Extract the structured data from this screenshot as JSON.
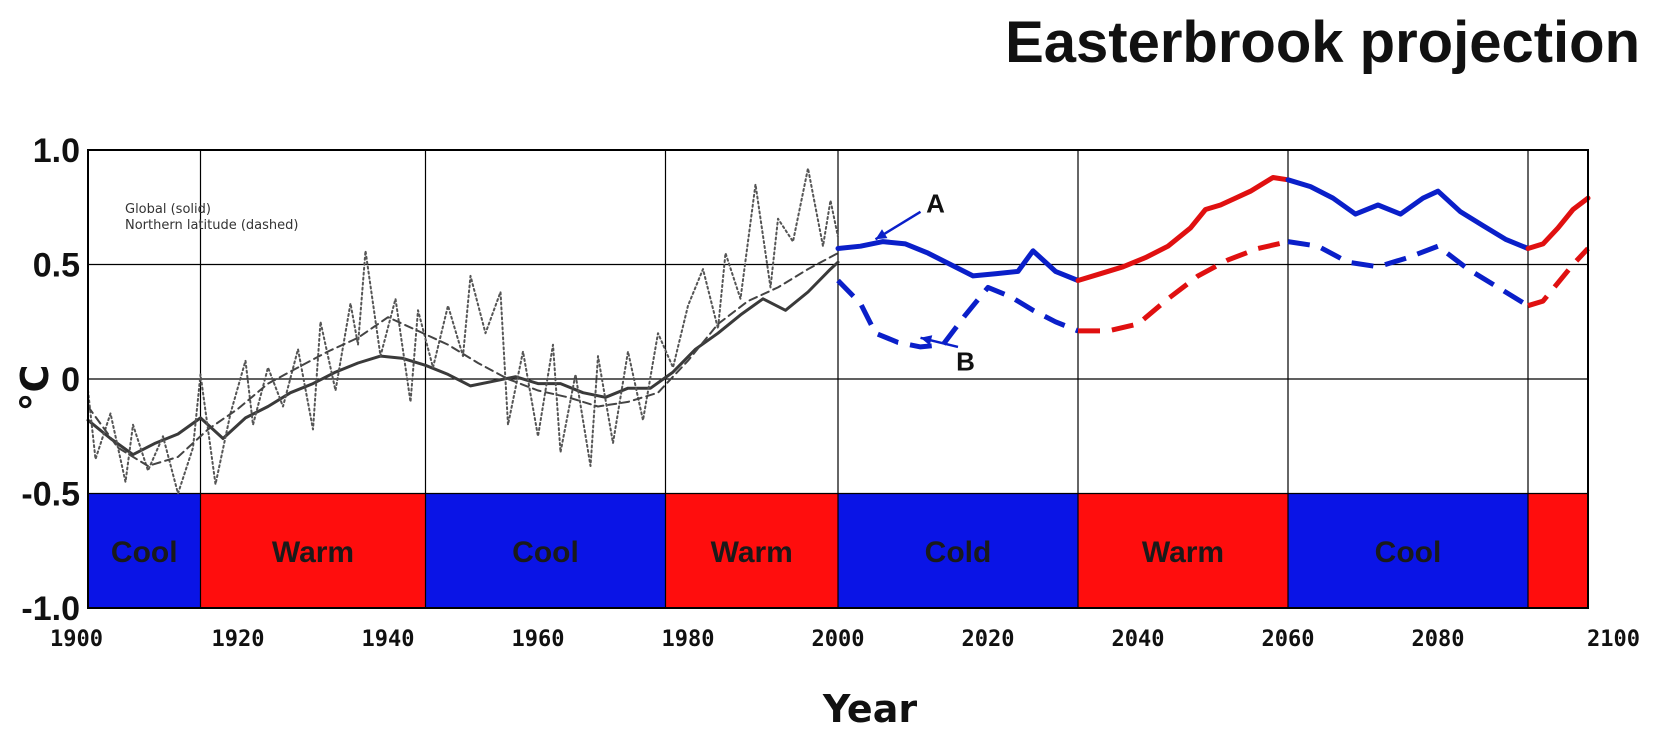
{
  "chart_data": {
    "type": "line",
    "title": "Easterbrook projection",
    "xlabel": "Year",
    "ylabel": "°C",
    "xlim": [
      1900,
      2100
    ],
    "ylim": [
      -1.0,
      1.0
    ],
    "xticks": [
      1900,
      1920,
      1940,
      1960,
      1980,
      2000,
      2020,
      2040,
      2060,
      2080,
      2100
    ],
    "yticks": [
      {
        "value": 1.0,
        "label": "1.0"
      },
      {
        "value": 0.5,
        "label": "0.5"
      },
      {
        "value": 0.0,
        "label": "0"
      },
      {
        "value": -0.5,
        "label": "-0.5"
      },
      {
        "value": -1.0,
        "label": "-1.0"
      }
    ],
    "legend": {
      "placement": "top-left",
      "entries": [
        "Global (solid)",
        "Northern latitude (dashed)"
      ]
    },
    "colors": {
      "blue": "#0a1fc9",
      "red": "#e01010",
      "grid": "#000000",
      "historic": "#333333"
    },
    "bands": [
      {
        "label": "Cool",
        "start": 1900,
        "end": 1915,
        "color": "#0a14e6"
      },
      {
        "label": "Warm",
        "start": 1915,
        "end": 1945,
        "color": "#ff0d0d"
      },
      {
        "label": "Cool",
        "start": 1945,
        "end": 1977,
        "color": "#0a14e6"
      },
      {
        "label": "Warm",
        "start": 1977,
        "end": 2000,
        "color": "#ff0d0d"
      },
      {
        "label": "Cold",
        "start": 2000,
        "end": 2032,
        "color": "#0a14e6"
      },
      {
        "label": "Warm",
        "start": 2032,
        "end": 2060,
        "color": "#ff0d0d"
      },
      {
        "label": "Cool",
        "start": 2060,
        "end": 2092,
        "color": "#0a14e6"
      },
      {
        "label": "",
        "start": 2092,
        "end": 2100,
        "color": "#ff0d0d"
      }
    ],
    "series": [
      {
        "style": "solid",
        "color": "blue",
        "x": [
          2000,
          2003,
          2006,
          2009,
          2012,
          2015,
          2018,
          2021,
          2024,
          2026,
          2029,
          2032
        ],
        "y": [
          0.57,
          0.58,
          0.6,
          0.59,
          0.55,
          0.5,
          0.45,
          0.46,
          0.47,
          0.56,
          0.47,
          0.43
        ]
      },
      {
        "style": "solid",
        "color": "red",
        "x": [
          2032,
          2035,
          2038,
          2041,
          2044,
          2047,
          2049,
          2051,
          2053,
          2055,
          2058,
          2060
        ],
        "y": [
          0.43,
          0.46,
          0.49,
          0.53,
          0.58,
          0.66,
          0.74,
          0.76,
          0.79,
          0.82,
          0.88,
          0.87
        ]
      },
      {
        "style": "solid",
        "color": "blue",
        "x": [
          2060,
          2063,
          2066,
          2069,
          2072,
          2075,
          2078,
          2080,
          2083,
          2086,
          2089,
          2092
        ],
        "y": [
          0.87,
          0.84,
          0.79,
          0.72,
          0.76,
          0.72,
          0.79,
          0.82,
          0.73,
          0.67,
          0.61,
          0.57
        ]
      },
      {
        "style": "solid",
        "color": "red",
        "x": [
          2092,
          2094,
          2096,
          2098,
          2100
        ],
        "y": [
          0.57,
          0.59,
          0.66,
          0.74,
          0.79
        ]
      },
      {
        "style": "dashed",
        "color": "blue",
        "x": [
          2000,
          2003,
          2005,
          2008,
          2011,
          2014,
          2017,
          2020,
          2023,
          2026,
          2029,
          2032
        ],
        "y": [
          0.43,
          0.33,
          0.2,
          0.16,
          0.14,
          0.15,
          0.28,
          0.4,
          0.36,
          0.3,
          0.25,
          0.21
        ]
      },
      {
        "style": "dashed",
        "color": "red",
        "x": [
          2032,
          2036,
          2040,
          2044,
          2048,
          2052,
          2056,
          2060
        ],
        "y": [
          0.21,
          0.21,
          0.24,
          0.35,
          0.45,
          0.52,
          0.57,
          0.6
        ]
      },
      {
        "style": "dashed",
        "color": "blue",
        "x": [
          2060,
          2064,
          2068,
          2072,
          2076,
          2080,
          2084,
          2088,
          2092
        ],
        "y": [
          0.6,
          0.58,
          0.51,
          0.49,
          0.53,
          0.58,
          0.48,
          0.4,
          0.32
        ]
      },
      {
        "style": "dashed",
        "color": "red",
        "x": [
          2092,
          2094,
          2096,
          2098,
          2100
        ],
        "y": [
          0.32,
          0.34,
          0.42,
          0.5,
          0.57
        ]
      },
      {
        "style": "historic-solid",
        "color": "historic",
        "x": [
          1900,
          1903,
          1906,
          1909,
          1912,
          1915,
          1918,
          1921,
          1924,
          1927,
          1930,
          1933,
          1936,
          1939,
          1942,
          1945,
          1948,
          1951,
          1954,
          1957,
          1960,
          1963,
          1966,
          1969,
          1972,
          1975,
          1978,
          1981,
          1984,
          1987,
          1990,
          1993,
          1996,
          1999,
          2000
        ],
        "y": [
          -0.18,
          -0.26,
          -0.33,
          -0.28,
          -0.24,
          -0.17,
          -0.26,
          -0.17,
          -0.12,
          -0.06,
          -0.02,
          0.03,
          0.07,
          0.1,
          0.09,
          0.06,
          0.02,
          -0.03,
          -0.01,
          0.01,
          -0.02,
          -0.02,
          -0.06,
          -0.08,
          -0.04,
          -0.04,
          0.03,
          0.13,
          0.2,
          0.28,
          0.35,
          0.3,
          0.38,
          0.48,
          0.51
        ]
      },
      {
        "style": "historic-dotted",
        "color": "historic",
        "x": [
          1900,
          1901,
          1903,
          1905,
          1906,
          1908,
          1910,
          1912,
          1914,
          1915,
          1917,
          1919,
          1921,
          1922,
          1924,
          1926,
          1928,
          1930,
          1931,
          1933,
          1935,
          1936,
          1937,
          1939,
          1941,
          1943,
          1944,
          1946,
          1948,
          1950,
          1951,
          1953,
          1955,
          1956,
          1958,
          1960,
          1962,
          1963,
          1965,
          1967,
          1968,
          1970,
          1972,
          1974,
          1976,
          1978,
          1980,
          1982,
          1984,
          1985,
          1987,
          1989,
          1991,
          1992,
          1994,
          1996,
          1998,
          1999,
          2000
        ],
        "y": [
          -0.05,
          -0.35,
          -0.15,
          -0.45,
          -0.2,
          -0.4,
          -0.25,
          -0.5,
          -0.3,
          0.02,
          -0.46,
          -0.15,
          0.08,
          -0.2,
          0.05,
          -0.12,
          0.13,
          -0.22,
          0.25,
          -0.05,
          0.33,
          0.15,
          0.56,
          0.1,
          0.35,
          -0.1,
          0.3,
          0.05,
          0.32,
          0.1,
          0.45,
          0.2,
          0.38,
          -0.2,
          0.12,
          -0.25,
          0.15,
          -0.32,
          0.02,
          -0.38,
          0.1,
          -0.28,
          0.12,
          -0.18,
          0.2,
          0.05,
          0.32,
          0.48,
          0.22,
          0.55,
          0.35,
          0.85,
          0.4,
          0.7,
          0.6,
          0.92,
          0.58,
          0.78,
          0.62
        ]
      },
      {
        "style": "historic-dashed",
        "color": "historic",
        "x": [
          1900,
          1904,
          1908,
          1912,
          1916,
          1920,
          1924,
          1928,
          1932,
          1936,
          1940,
          1944,
          1948,
          1952,
          1956,
          1960,
          1964,
          1968,
          1972,
          1976,
          1980,
          1984,
          1988,
          1992,
          1996,
          2000
        ],
        "y": [
          -0.12,
          -0.3,
          -0.38,
          -0.34,
          -0.22,
          -0.13,
          -0.02,
          0.05,
          0.12,
          0.18,
          0.27,
          0.21,
          0.15,
          0.07,
          0.0,
          -0.05,
          -0.08,
          -0.12,
          -0.1,
          -0.06,
          0.08,
          0.24,
          0.34,
          0.4,
          0.48,
          0.55
        ]
      }
    ],
    "annotations": [
      {
        "label": "A",
        "text_x": 2013,
        "text_y": 0.77,
        "arrow_from": [
          2011,
          0.73
        ],
        "arrow_to": [
          2005,
          0.61
        ]
      },
      {
        "label": "B",
        "text_x": 2017,
        "text_y": 0.08,
        "arrow_from": [
          2016,
          0.14
        ],
        "arrow_to": [
          2011,
          0.18
        ]
      }
    ]
  }
}
